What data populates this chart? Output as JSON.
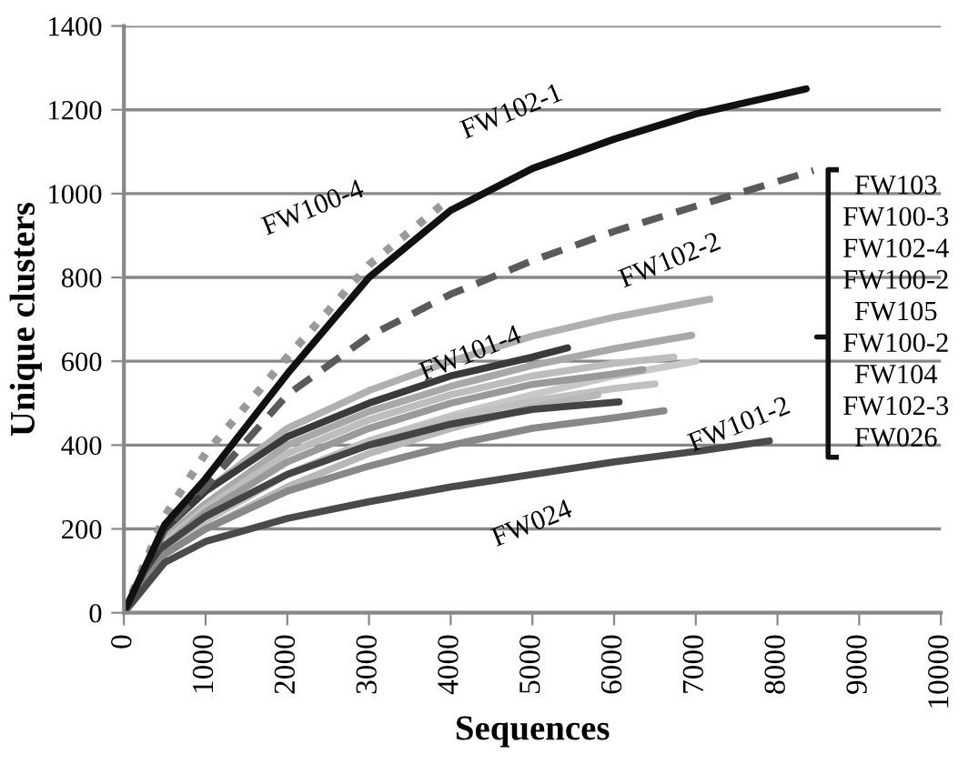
{
  "chart_data": {
    "type": "line",
    "xlabel": "Sequences",
    "ylabel": "Unique clusters",
    "xlim": [
      0,
      10000
    ],
    "xticks": [
      0,
      1000,
      2000,
      3000,
      4000,
      5000,
      6000,
      7000,
      8000,
      9000,
      10000
    ],
    "ylim": [
      0,
      1400
    ],
    "yticks": [
      0,
      200,
      400,
      600,
      800,
      1000,
      1200,
      1400
    ],
    "grid": "y",
    "marker": "none",
    "line_style": "solid",
    "series": [
      {
        "color": "#c8c8c8",
        "x": [
          0,
          500,
          1000,
          2000,
          3000,
          4000,
          5000,
          6000,
          7000
        ],
        "values": [
          0,
          150,
          220,
          330,
          410,
          470,
          520,
          565,
          600
        ]
      },
      {
        "color": "#b0b0b0",
        "x": [
          0,
          500,
          1000,
          2000,
          3000,
          4000,
          5000,
          6000,
          7170
        ],
        "values": [
          0,
          200,
          290,
          440,
          530,
          600,
          660,
          705,
          748
        ]
      },
      {
        "color": "#a8a8a8",
        "x": [
          0,
          500,
          1000,
          2000,
          3000,
          4000,
          5000,
          6000,
          6950
        ],
        "values": [
          0,
          180,
          260,
          400,
          480,
          540,
          590,
          630,
          662
        ]
      },
      {
        "color": "#bdbdbd",
        "x": [
          0,
          500,
          1000,
          2000,
          3000,
          4000,
          5000,
          6000,
          6730
        ],
        "values": [
          0,
          170,
          250,
          380,
          460,
          520,
          565,
          595,
          610
        ]
      },
      {
        "color": "#9a9a9a",
        "x": [
          0,
          500,
          1000,
          2000,
          3000,
          4000,
          5000,
          6000,
          6350
        ],
        "values": [
          0,
          160,
          240,
          360,
          440,
          500,
          545,
          570,
          580
        ]
      },
      {
        "color": "#c0c0c0",
        "x": [
          0,
          500,
          1000,
          2000,
          3000,
          4000,
          5000,
          6000,
          6500
        ],
        "values": [
          0,
          150,
          220,
          330,
          410,
          465,
          505,
          535,
          546
        ]
      },
      {
        "color": "#b8b8b8",
        "x": [
          0,
          500,
          1000,
          2000,
          3000,
          4000,
          5000,
          5800
        ],
        "values": [
          0,
          140,
          200,
          300,
          380,
          440,
          490,
          520
        ]
      },
      {
        "color": "#444444",
        "x": [
          0,
          500,
          1000,
          2000,
          3000,
          4000,
          5000,
          6060
        ],
        "values": [
          0,
          160,
          230,
          330,
          400,
          450,
          485,
          503
        ]
      },
      {
        "color": "#3a3a3a",
        "x": [
          0,
          500,
          1000,
          2000,
          3000,
          4000,
          5000,
          5430
        ],
        "values": [
          0,
          200,
          290,
          420,
          500,
          565,
          610,
          632
        ]
      },
      {
        "color": "#888888",
        "x": [
          0,
          500,
          1000,
          2000,
          3000,
          4000,
          5000,
          6000,
          6610
        ],
        "values": [
          0,
          140,
          200,
          290,
          350,
          400,
          440,
          465,
          482
        ]
      },
      {
        "color": "#4a4a4a",
        "x": [
          0,
          500,
          1000,
          2000,
          3000,
          4000,
          5000,
          6000,
          7000,
          7900
        ],
        "values": [
          0,
          120,
          170,
          225,
          265,
          300,
          330,
          360,
          385,
          410
        ]
      },
      {
        "color": "#5a5a5a",
        "line_style": "dashed",
        "x": [
          0,
          500,
          1000,
          2000,
          3000,
          4000,
          5000,
          6000,
          7000,
          8440
        ],
        "values": [
          0,
          200,
          300,
          520,
          660,
          760,
          840,
          910,
          970,
          1055
        ]
      },
      {
        "color": "#999999",
        "line_style": "dotted",
        "x": [
          0,
          500,
          1000,
          2000,
          3000,
          4000
        ],
        "values": [
          0,
          230,
          380,
          610,
          830,
          990
        ]
      },
      {
        "color": "#111111",
        "x": [
          0,
          500,
          1000,
          2000,
          3000,
          4000,
          5000,
          6000,
          7000,
          8350
        ],
        "values": [
          0,
          210,
          320,
          570,
          800,
          960,
          1060,
          1130,
          1190,
          1250
        ]
      }
    ],
    "annotations": [
      {
        "text": "FW102-1",
        "x": 5000,
        "y": 1060
      },
      {
        "text": "FW100-4",
        "x": 3000,
        "y": 830
      },
      {
        "text": "FW102-2",
        "x": 7000,
        "y": 970
      },
      {
        "text": "FW101-4",
        "x": 4000,
        "y": 760
      },
      {
        "text": "FW101-2",
        "x": 6610,
        "y": 482
      },
      {
        "text": "FW024",
        "x": 5000,
        "y": 330
      },
      "FW103",
      "FW100-3",
      "FW102-4",
      "FW100-2",
      "FW105",
      "FW100-2",
      "FW104",
      "FW102-3",
      "FW026"
    ]
  }
}
